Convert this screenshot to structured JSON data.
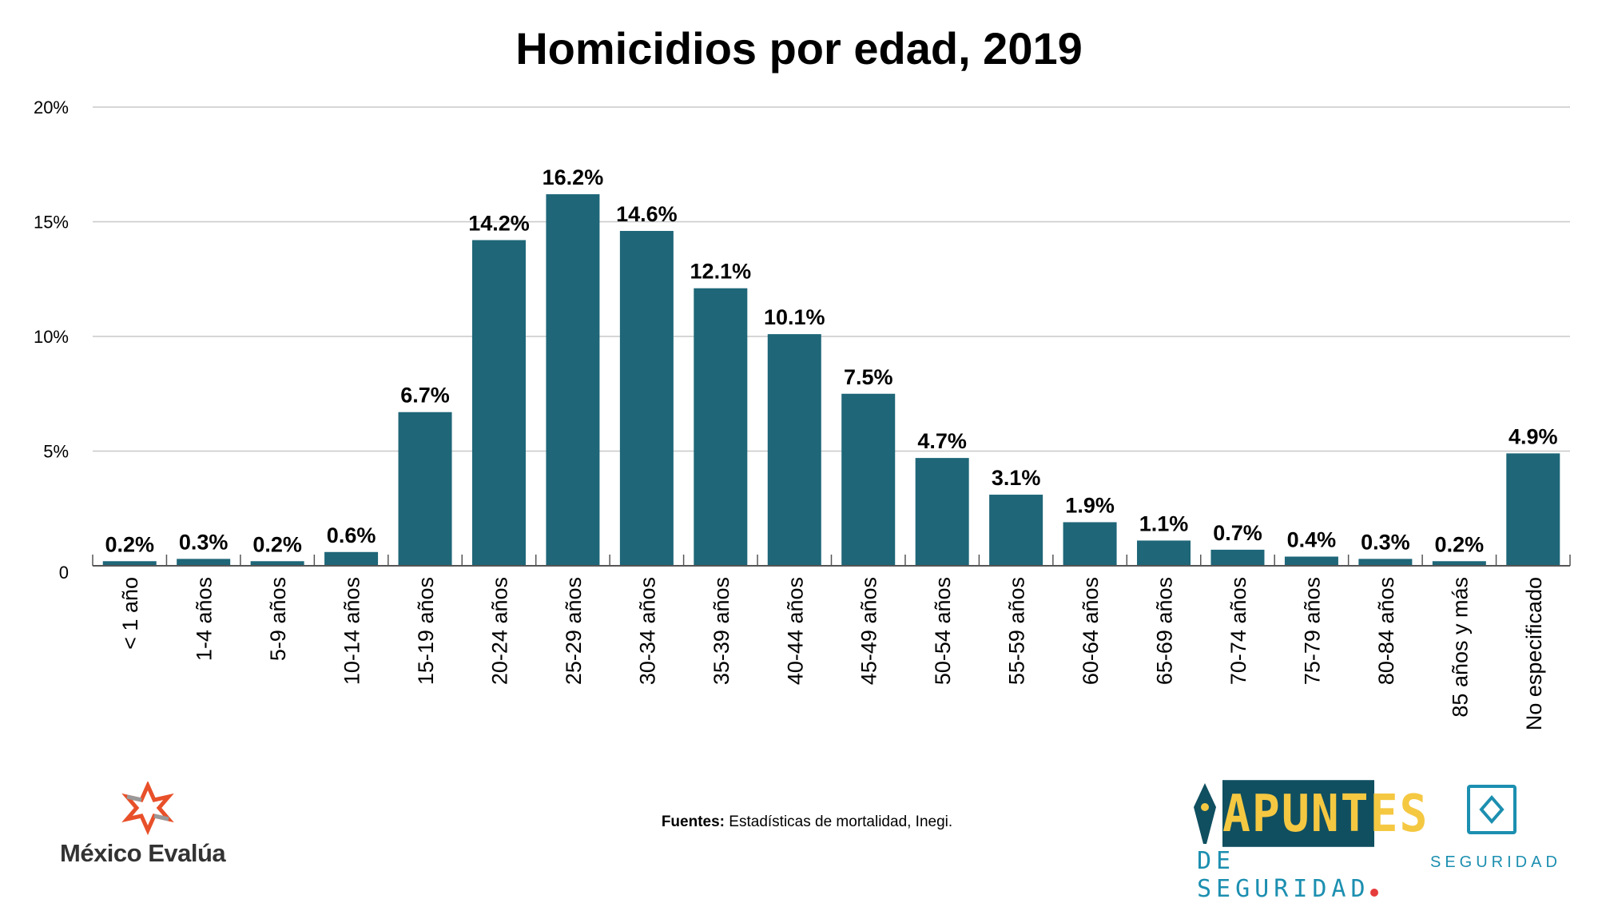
{
  "chart_data": {
    "type": "bar",
    "title": "Homicidios por edad, 2019",
    "xlabel": "",
    "ylabel": "",
    "ylim": [
      0,
      20
    ],
    "yticks": [
      0,
      5,
      10,
      15,
      20
    ],
    "ytick_labels": [
      "0",
      "5%",
      "10%",
      "15%",
      "20%"
    ],
    "grid": true,
    "categories": [
      "< 1 año",
      "1-4 años",
      "5-9 años",
      "10-14 años",
      "15-19 años",
      "20-24 años",
      "25-29 años",
      "30-34 años",
      "35-39 años",
      "40-44 años",
      "45-49 años",
      "50-54 años",
      "55-59 años",
      "60-64 años",
      "65-69 años",
      "70-74 años",
      "75-79 años",
      "80-84 años",
      "85 años y más",
      "No especificado"
    ],
    "values": [
      0.2,
      0.3,
      0.2,
      0.6,
      6.7,
      14.2,
      16.2,
      14.6,
      12.1,
      10.1,
      7.5,
      4.7,
      3.1,
      1.9,
      1.1,
      0.7,
      0.4,
      0.3,
      0.2,
      4.9
    ],
    "data_labels": [
      "0.2%",
      "0.3%",
      "0.2%",
      "0.6%",
      "6.7%",
      "14.2%",
      "16.2%",
      "14.6%",
      "12.1%",
      "10.1%",
      "7.5%",
      "4.7%",
      "3.1%",
      "1.9%",
      "1.1%",
      "0.7%",
      "0.4%",
      "0.3%",
      "0.2%",
      "4.9%"
    ],
    "bar_color": "#1e6678"
  },
  "footer": {
    "source_label": "Fuentes:",
    "source_text": "Estadísticas de mortalidad, Inegi.",
    "logo_left": "México Evalúa",
    "logo_center_main": "APUNTES",
    "logo_center_sub": "DE SEGURIDAD",
    "logo_right": "SEGURIDAD"
  }
}
